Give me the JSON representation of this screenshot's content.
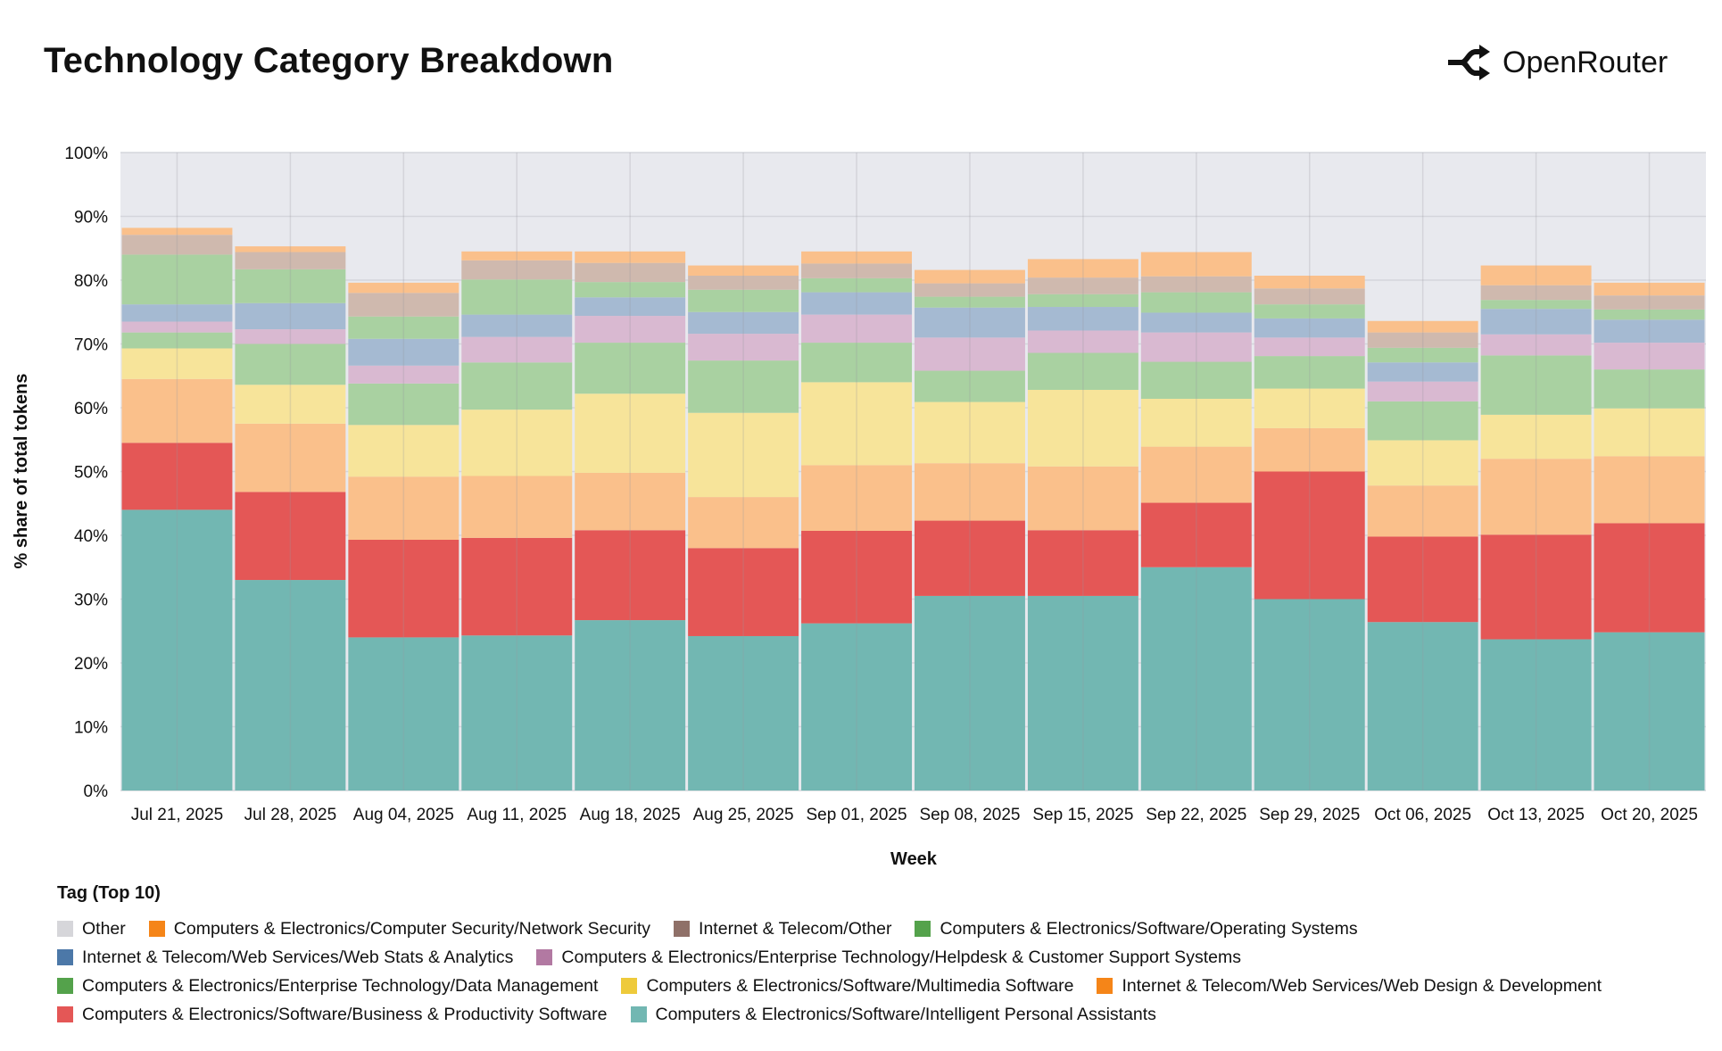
{
  "header": {
    "title": "Technology Category Breakdown",
    "brand": "OpenRouter",
    "brand_icon": "openrouter-logo-icon"
  },
  "chart_data": {
    "type": "bar",
    "stacked": true,
    "title": "Technology Category Breakdown",
    "xlabel": "Week",
    "ylabel": "% share of total tokens",
    "ylim": [
      0,
      100
    ],
    "yticks": [
      "0%",
      "10%",
      "20%",
      "30%",
      "40%",
      "50%",
      "60%",
      "70%",
      "80%",
      "90%",
      "100%"
    ],
    "grid": true,
    "legend_title": "Tag (Top 10)",
    "legend_placement": "bottom",
    "categories": [
      "Jul 21, 2025",
      "Jul 28, 2025",
      "Aug 04, 2025",
      "Aug 11, 2025",
      "Aug 18, 2025",
      "Aug 25, 2025",
      "Sep 01, 2025",
      "Sep 08, 2025",
      "Sep 15, 2025",
      "Sep 22, 2025",
      "Sep 29, 2025",
      "Oct 06, 2025",
      "Oct 13, 2025",
      "Oct 20, 2025"
    ],
    "series": [
      {
        "name": "Computers & Electronics/Software/Intelligent Personal Assistants",
        "color": "#72b7b2",
        "fill": "#72b7b2",
        "values": [
          44,
          33,
          24,
          24.3,
          26.7,
          24.2,
          26.2,
          30.5,
          30.5,
          35,
          30,
          26.4,
          23.7,
          24.8
        ]
      },
      {
        "name": "Computers & Electronics/Software/Business & Productivity Software",
        "color": "#e45756",
        "fill": "#e45756",
        "values": [
          10.5,
          13.8,
          15.3,
          15.3,
          14.1,
          13.8,
          14.5,
          11.8,
          10.3,
          10.1,
          20,
          13.4,
          16.4,
          17.1
        ]
      },
      {
        "name": "Internet & Telecom/Web Services/Web Design & Development",
        "color": "#f58518",
        "fill": "#fac08b",
        "values": [
          10,
          10.7,
          9.9,
          9.7,
          9.0,
          8.0,
          10.3,
          9.0,
          10.0,
          8.8,
          6.8,
          8.0,
          11.9,
          10.5
        ]
      },
      {
        "name": "Computers & Electronics/Software/Multimedia Software",
        "color": "#eeca3b",
        "fill": "#f7e49a",
        "values": [
          4.8,
          6.1,
          8.1,
          10.4,
          12.4,
          13.2,
          13.0,
          9.6,
          12.0,
          7.5,
          6.2,
          7.1,
          6.9,
          7.5
        ]
      },
      {
        "name": "Computers & Electronics/Enterprise Technology/Data Management",
        "color": "#54a24b",
        "fill": "#a9d1a1",
        "values": [
          2.5,
          6.4,
          6.5,
          7.4,
          8.0,
          8.2,
          6.2,
          4.9,
          5.8,
          5.8,
          5.1,
          6.1,
          9.3,
          6.1
        ]
      },
      {
        "name": "Computers & Electronics/Enterprise Technology/Helpdesk & Customer Support Systems",
        "color": "#b279a2",
        "fill": "#d9b9d1",
        "values": [
          1.7,
          2.3,
          2.8,
          4.0,
          4.2,
          4.2,
          4.4,
          5.2,
          3.5,
          4.6,
          2.9,
          3.1,
          3.3,
          4.2
        ]
      },
      {
        "name": "Internet & Telecom/Web Services/Web Stats & Analytics",
        "color": "#4c78a8",
        "fill": "#a5bad2",
        "values": [
          2.7,
          4.1,
          4.2,
          3.5,
          2.9,
          3.4,
          3.5,
          4.7,
          3.7,
          3.1,
          3.0,
          3.0,
          4.0,
          3.6
        ]
      },
      {
        "name": "Computers & Electronics/Software/Operating Systems",
        "color": "#54a24b",
        "fill": "#a9d1a1",
        "values": [
          7.8,
          5.3,
          3.5,
          5.5,
          2.4,
          3.5,
          2.2,
          1.7,
          2.0,
          3.2,
          2.2,
          2.3,
          1.4,
          1.6
        ]
      },
      {
        "name": "Internet & Telecom/Other",
        "color": "#8f7068",
        "fill": "#cfb9ae",
        "values": [
          3.1,
          2.7,
          3.7,
          3.0,
          3.0,
          2.2,
          2.3,
          2.1,
          2.6,
          2.5,
          2.5,
          2.4,
          2.3,
          2.2
        ]
      },
      {
        "name": "Computers & Electronics/Computer Security/Network Security",
        "color": "#f58518",
        "fill": "#fac08b",
        "values": [
          1.1,
          0.9,
          1.6,
          1.4,
          1.8,
          1.6,
          1.9,
          2.1,
          2.9,
          3.8,
          2.0,
          1.8,
          3.1,
          2.0
        ]
      }
    ],
    "legend": [
      {
        "name": "Other",
        "color": "#d6d6da"
      },
      {
        "name": "Computers & Electronics/Computer Security/Network Security",
        "color": "#f58518"
      },
      {
        "name": "Internet & Telecom/Other",
        "color": "#8f7068"
      },
      {
        "name": "Computers & Electronics/Software/Operating Systems",
        "color": "#54a24b"
      },
      {
        "name": "Internet & Telecom/Web Services/Web Stats & Analytics",
        "color": "#4c78a8"
      },
      {
        "name": "Computers & Electronics/Enterprise Technology/Helpdesk & Customer Support Systems",
        "color": "#b279a2"
      },
      {
        "name": "Computers & Electronics/Enterprise Technology/Data Management",
        "color": "#54a24b"
      },
      {
        "name": "Computers & Electronics/Software/Multimedia Software",
        "color": "#eeca3b"
      },
      {
        "name": "Internet & Telecom/Web Services/Web Design & Development",
        "color": "#f58518"
      },
      {
        "name": "Computers & Electronics/Software/Business & Productivity Software",
        "color": "#e45756"
      },
      {
        "name": "Computers & Electronics/Software/Intelligent Personal Assistants",
        "color": "#72b7b2"
      }
    ],
    "plot_background": "#e8e9ee"
  }
}
